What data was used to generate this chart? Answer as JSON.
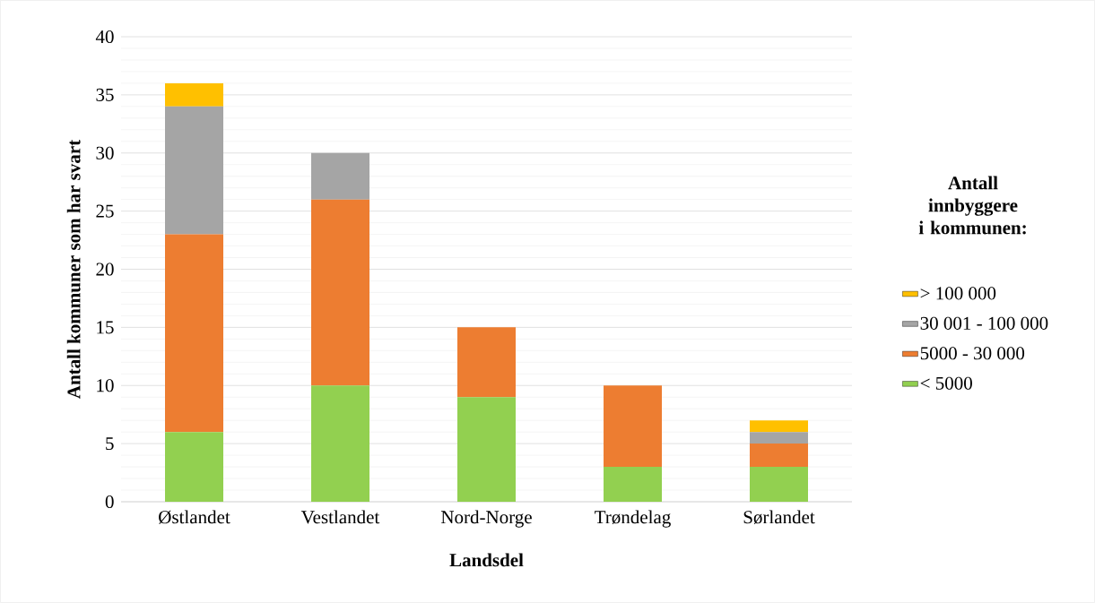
{
  "chart_data": {
    "type": "bar",
    "stacked": true,
    "xlabel": "Landsdel",
    "ylabel": "Antall kommuner som har svart",
    "legend_title": "Antall innbyggere i kommunen:",
    "categories": [
      "Østlandet",
      "Vestlandet",
      "Nord-Norge",
      "Trøndelag",
      "Sørlandet"
    ],
    "series": [
      {
        "name": "< 5000",
        "color": "#92d050",
        "values": [
          6,
          10,
          9,
          3,
          3
        ]
      },
      {
        "name": "5000 - 30 000",
        "color": "#ed7d31",
        "values": [
          17,
          16,
          6,
          7,
          2
        ]
      },
      {
        "name": "30 001 - 100 000",
        "color": "#a5a5a5",
        "values": [
          11,
          4,
          0,
          0,
          1
        ]
      },
      {
        "name": "> 100 000",
        "color": "#ffc000",
        "values": [
          2,
          0,
          0,
          0,
          1
        ]
      }
    ],
    "ylim": [
      0,
      40
    ],
    "yticks": [
      0,
      5,
      10,
      15,
      20,
      25,
      30,
      35,
      40
    ],
    "grid": "y",
    "legend": "right"
  }
}
